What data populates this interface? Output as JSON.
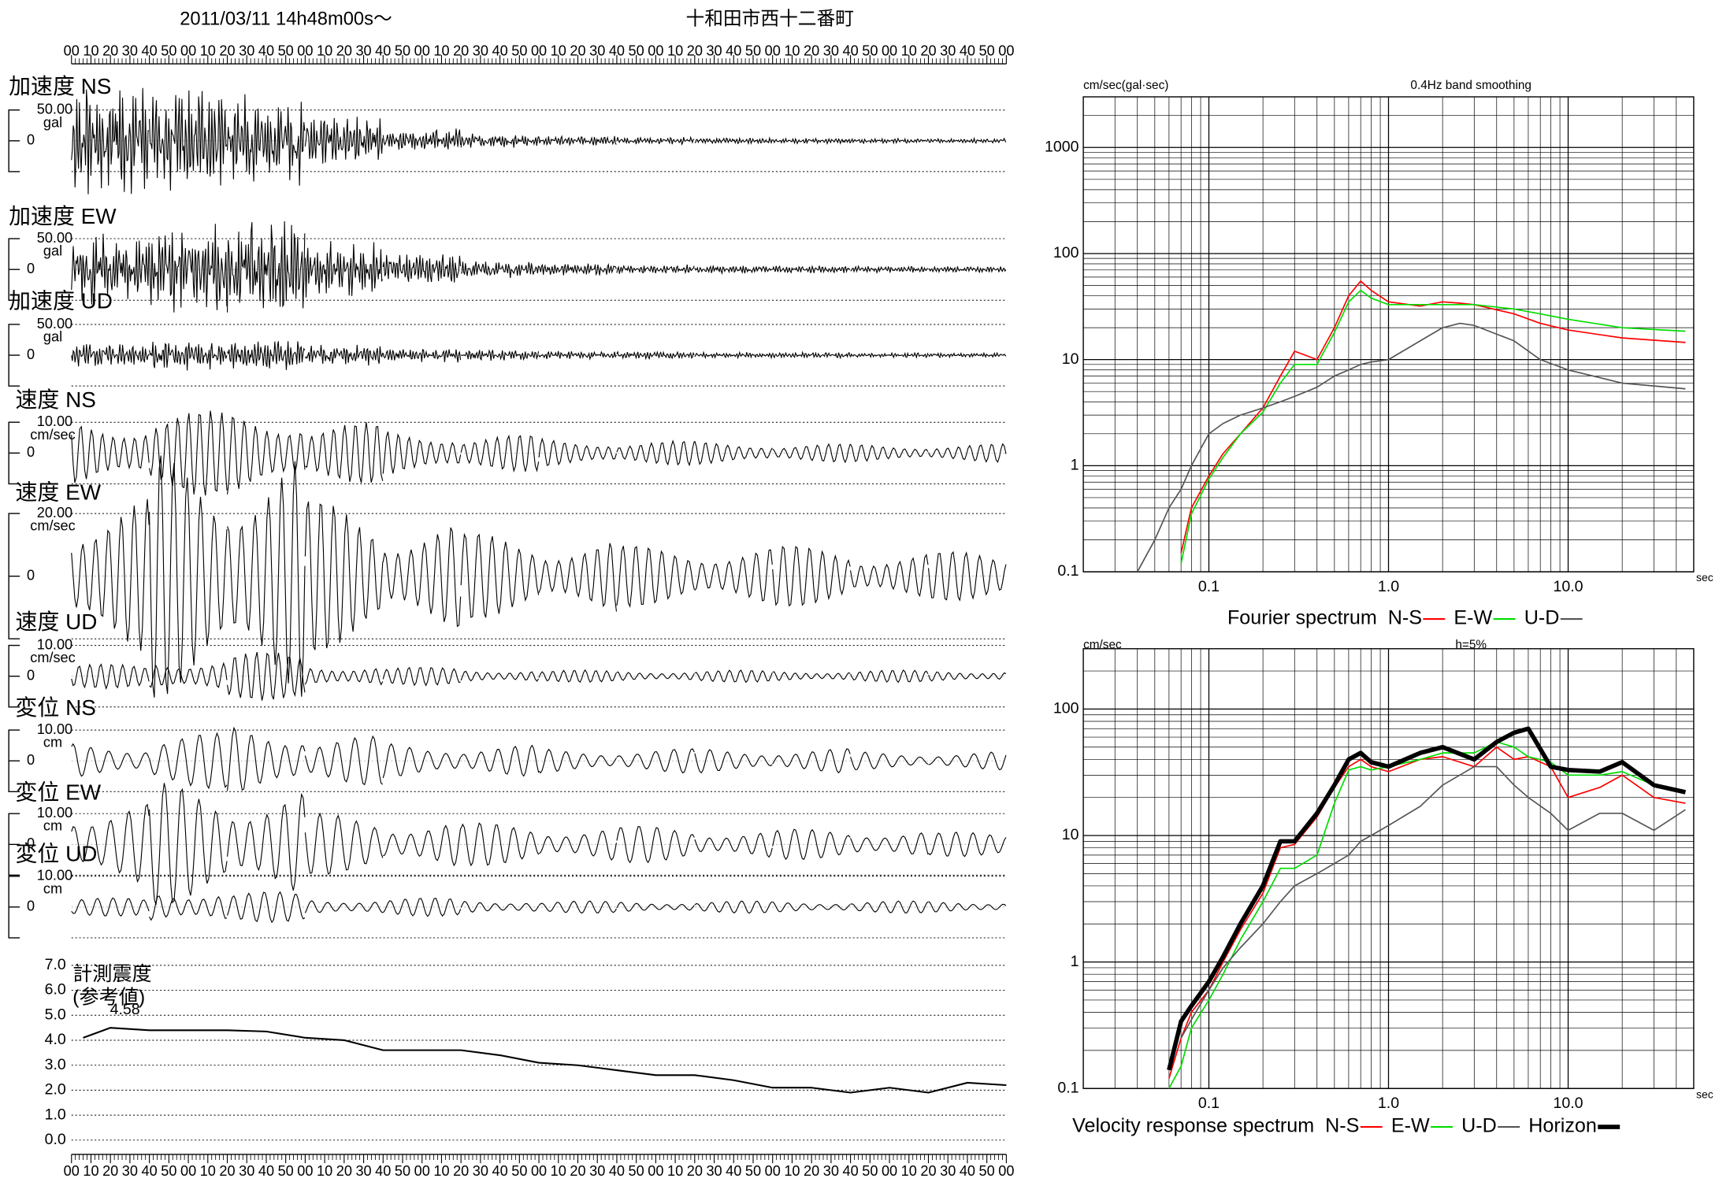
{
  "header": {
    "date": "2011/03/11  14h48m00s〜",
    "place": "十和田市西十二番町"
  },
  "time_labels": [
    "00",
    "10",
    "20",
    "30",
    "40",
    "50",
    "00",
    "10",
    "20",
    "30",
    "40",
    "50",
    "00",
    "10",
    "20",
    "30",
    "40",
    "50",
    "00",
    "10",
    "20",
    "30",
    "40",
    "50",
    "00",
    "10",
    "20",
    "30",
    "40",
    "50",
    "00",
    "10",
    "20",
    "30",
    "40",
    "50",
    "00",
    "10",
    "20",
    "30",
    "40",
    "50",
    "00",
    "10",
    "20",
    "30",
    "40",
    "50",
    "00"
  ],
  "traces": [
    {
      "label": "加速度 NS",
      "scale": {
        "value": 50,
        "label": "50.00"
      },
      "unit": "gal",
      "zero": 0,
      "envelope": [
        90,
        85,
        80,
        40,
        20,
        12,
        8,
        6,
        5,
        5,
        4,
        4
      ]
    },
    {
      "label": "加速度 EW",
      "scale": {
        "value": 50,
        "label": "50.00"
      },
      "unit": "gal",
      "zero": 0,
      "envelope": [
        60,
        75,
        85,
        50,
        25,
        15,
        10,
        8,
        7,
        6,
        6,
        5
      ]
    },
    {
      "label": "加速度 UD",
      "scale": {
        "value": 50,
        "label": "50.00"
      },
      "unit": "gal",
      "zero": 0,
      "envelope": [
        20,
        25,
        25,
        18,
        12,
        9,
        7,
        6,
        5,
        5,
        4,
        4
      ]
    },
    {
      "label": "速度 NS",
      "scale": {
        "value": 10,
        "label": "10.00"
      },
      "unit": "cm/sec",
      "zero": 0,
      "envelope": [
        12,
        14,
        15,
        10,
        8,
        6,
        5,
        4,
        4,
        3,
        3,
        3
      ]
    },
    {
      "label": "速度 EW",
      "scale": {
        "value": 20,
        "label": "20.00"
      },
      "unit": "cm/sec",
      "zero": 0,
      "envelope": [
        25,
        40,
        40,
        25,
        18,
        14,
        12,
        10,
        10,
        10,
        8,
        8
      ]
    },
    {
      "label": "速度 UD",
      "scale": {
        "value": 10,
        "label": "10.00"
      },
      "unit": "cm/sec",
      "zero": 0,
      "envelope": [
        4,
        6,
        8,
        4,
        3,
        2.5,
        2,
        2,
        2,
        2,
        2,
        2
      ]
    },
    {
      "label": "変位 NS",
      "scale": {
        "value": 10,
        "label": "10.00"
      },
      "unit": "cm",
      "zero": 0,
      "envelope": [
        6,
        9,
        12,
        8,
        6,
        5,
        4,
        4,
        4,
        4,
        3,
        3
      ]
    },
    {
      "label": "変位 EW",
      "scale": {
        "value": 10,
        "label": "10.00"
      },
      "unit": "cm",
      "zero": 0,
      "envelope": [
        14,
        20,
        18,
        10,
        8,
        7,
        6,
        6,
        5,
        5,
        5,
        4
      ]
    },
    {
      "label": "変位 UD",
      "scale": {
        "value": 10,
        "label": "10.00"
      },
      "unit": "cm",
      "zero": 0,
      "envelope": [
        3,
        6,
        5,
        3,
        3,
        2.5,
        2,
        2,
        2,
        2,
        2,
        2
      ]
    }
  ],
  "chart_data": [
    {
      "type": "line",
      "title": "計測震度",
      "subtitle": "(参考値)",
      "annotation": "4.58",
      "x": [
        6,
        20,
        40,
        60,
        80,
        100,
        120,
        140,
        160,
        180,
        200,
        220,
        240,
        260,
        280,
        300,
        320,
        340,
        360,
        380,
        400,
        420,
        440,
        460,
        480
      ],
      "series": [
        {
          "color": "#000000",
          "values": [
            4.1,
            4.5,
            4.4,
            4.4,
            4.4,
            4.35,
            4.1,
            4.0,
            3.6,
            3.6,
            3.6,
            3.4,
            3.1,
            3.0,
            2.8,
            2.6,
            2.6,
            2.4,
            2.1,
            2.1,
            1.9,
            2.1,
            1.9,
            2.3,
            2.2
          ]
        }
      ],
      "xlim": [
        0,
        480
      ],
      "ylim": [
        0,
        7
      ],
      "yticks": [
        {
          "value": 0,
          "label": "0.0"
        },
        {
          "value": 1,
          "label": "1.0"
        },
        {
          "value": 2,
          "label": "2.0"
        },
        {
          "value": 3,
          "label": "3.0"
        },
        {
          "value": 4,
          "label": "4.0"
        },
        {
          "value": 5,
          "label": "5.0"
        },
        {
          "value": 6,
          "label": "6.0"
        },
        {
          "value": 7,
          "label": "7.0"
        }
      ],
      "grid": true
    },
    {
      "type": "line",
      "log_scale": true,
      "title": "0.4Hz band smoothing",
      "y_label": "cm/sec(gal·sec)",
      "x_label": "sec",
      "legend_title": "Fourier spectrum",
      "x": [
        0.04,
        0.05,
        0.06,
        0.07,
        0.08,
        0.1,
        0.12,
        0.15,
        0.2,
        0.25,
        0.3,
        0.4,
        0.5,
        0.6,
        0.7,
        0.8,
        1,
        1.5,
        2,
        2.5,
        3,
        5,
        7,
        10,
        20,
        45
      ],
      "series": [
        {
          "name": "N-S",
          "color": "#ff0000",
          "line_width": 1.2,
          "values": [
            null,
            null,
            null,
            0.15,
            0.4,
            0.8,
            1.3,
            2,
            3.5,
            7,
            12,
            10,
            20,
            40,
            55,
            45,
            35,
            32,
            35,
            34,
            33,
            27,
            22,
            19,
            16,
            14.5
          ]
        },
        {
          "name": "E-W",
          "color": "#00dd00",
          "line_width": 1.2,
          "values": [
            null,
            null,
            null,
            0.12,
            0.35,
            0.75,
            1.2,
            2,
            3.2,
            6,
            9,
            9,
            18,
            35,
            45,
            38,
            33,
            33,
            33,
            33,
            33,
            30,
            27,
            24,
            20,
            18.5
          ]
        },
        {
          "name": "U-D",
          "color": "#555555",
          "line_width": 1.2,
          "values": [
            0.1,
            0.2,
            0.4,
            0.6,
            1,
            2,
            2.5,
            3,
            3.5,
            4,
            4.5,
            5.5,
            7,
            8,
            9,
            9.5,
            10,
            15,
            20,
            22,
            21,
            15,
            10,
            8,
            6,
            5.3
          ]
        }
      ],
      "xlim": [
        0.02,
        50
      ],
      "ylim": [
        0.1,
        3000
      ],
      "xticks": [
        0.1,
        {
          "value": 1,
          "label": "1.0"
        },
        {
          "value": 10,
          "label": "10.0"
        }
      ],
      "yticks": [
        0.1,
        1,
        10,
        100,
        1000
      ],
      "grid": true
    },
    {
      "type": "line",
      "log_scale": true,
      "title": "h=5%",
      "y_label": "cm/sec",
      "x_label": "sec",
      "legend_title": "Velocity response spectrum",
      "x": [
        0.06,
        0.07,
        0.08,
        0.1,
        0.12,
        0.15,
        0.2,
        0.25,
        0.3,
        0.4,
        0.5,
        0.6,
        0.7,
        0.8,
        1,
        1.5,
        2,
        3,
        4,
        5,
        6,
        8,
        10,
        15,
        20,
        30,
        45
      ],
      "series": [
        {
          "name": "N-S",
          "color": "#ff0000",
          "line_width": 1.2,
          "values": [
            0.12,
            0.25,
            0.4,
            0.6,
            1,
            1.8,
            3.5,
            8,
            8.5,
            14,
            24,
            35,
            40,
            35,
            32,
            40,
            42,
            35,
            50,
            40,
            42,
            35,
            20,
            24,
            30,
            20,
            18
          ]
        },
        {
          "name": "E-W",
          "color": "#00dd00",
          "line_width": 1.2,
          "values": [
            0.1,
            0.15,
            0.3,
            0.5,
            0.8,
            1.5,
            3,
            5.5,
            5.5,
            7,
            18,
            33,
            35,
            33,
            35,
            40,
            45,
            45,
            55,
            50,
            42,
            38,
            30,
            30,
            32,
            25,
            22
          ]
        },
        {
          "name": "U-D",
          "color": "#555555",
          "line_width": 1.2,
          "values": [
            null,
            0.25,
            0.35,
            0.6,
            0.9,
            1.3,
            2,
            3,
            4,
            5,
            6,
            7,
            9,
            10,
            12,
            17,
            25,
            35,
            35,
            25,
            20,
            15,
            11,
            15,
            15,
            11,
            16
          ]
        },
        {
          "name": "Horizon",
          "color": "#000000",
          "line_width": 4,
          "values": [
            0.14,
            0.34,
            0.45,
            0.7,
            1.1,
            2,
            4,
            9,
            9,
            15,
            25,
            40,
            45,
            38,
            35,
            45,
            50,
            40,
            55,
            65,
            70,
            35,
            33,
            32,
            38,
            25,
            22
          ]
        }
      ],
      "xlim": [
        0.02,
        50
      ],
      "ylim": [
        0.1,
        300
      ],
      "xticks": [
        0.1,
        {
          "value": 1,
          "label": "1.0"
        },
        {
          "value": 10,
          "label": "10.0"
        }
      ],
      "yticks": [
        0.1,
        1,
        10,
        100
      ],
      "grid": true
    }
  ]
}
